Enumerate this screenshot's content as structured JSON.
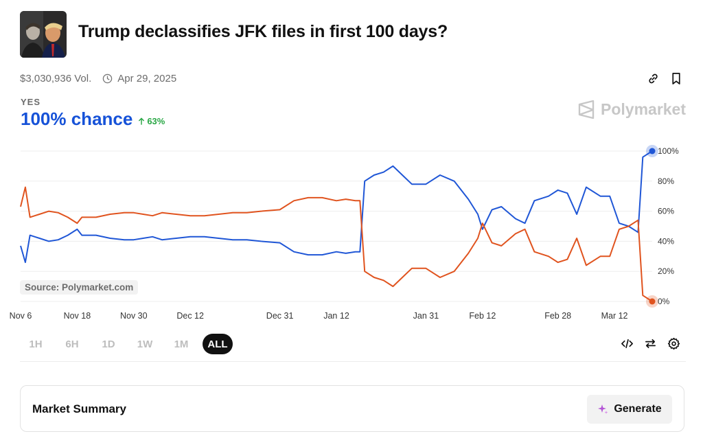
{
  "market": {
    "title": "Trump declassifies JFK files in first 100 days?",
    "volume": "$3,030,936 Vol.",
    "end_date": "Apr 29, 2025"
  },
  "outcome": {
    "label": "YES",
    "chance": "100% chance",
    "delta": "63%",
    "delta_color": "#29a745"
  },
  "brand": {
    "name": "Polymarket"
  },
  "source_label": "Source: Polymarket.com",
  "ranges": [
    "1H",
    "6H",
    "1D",
    "1W",
    "1M",
    "ALL"
  ],
  "active_range": "ALL",
  "summary": {
    "label": "Market Summary",
    "button": "Generate"
  },
  "icons": {
    "top": [
      "link-icon",
      "bookmark-icon"
    ],
    "tools": [
      "embed-code-icon",
      "swap-icon",
      "settings-icon"
    ]
  },
  "colors": {
    "accent": "#1652d8",
    "yes_line": "#1f56d6",
    "no_line": "#e0531e"
  },
  "chart_data": {
    "type": "line",
    "x_ticks": [
      "Nov 6",
      "Nov 18",
      "Nov 30",
      "Dec 12",
      "Dec 31",
      "Jan 12",
      "Jan 31",
      "Feb 12",
      "Feb 28",
      "Mar 12"
    ],
    "y_ticks": [
      "0%",
      "20%",
      "40%",
      "60%",
      "80%",
      "100%"
    ],
    "ylim": [
      0,
      100
    ],
    "grid": true,
    "series": [
      {
        "color": "#1f56d6",
        "points": [
          [
            "Nov 6",
            37
          ],
          [
            "Nov 7",
            26
          ],
          [
            "Nov 8",
            44
          ],
          [
            "Nov 9",
            43
          ],
          [
            "Nov 10",
            42
          ],
          [
            "Nov 12",
            40
          ],
          [
            "Nov 14",
            41
          ],
          [
            "Nov 16",
            44
          ],
          [
            "Nov 18",
            48
          ],
          [
            "Nov 19",
            44
          ],
          [
            "Nov 22",
            44
          ],
          [
            "Nov 25",
            42
          ],
          [
            "Nov 28",
            41
          ],
          [
            "Nov 30",
            41
          ],
          [
            "Dec 2",
            42
          ],
          [
            "Dec 4",
            43
          ],
          [
            "Dec 6",
            41
          ],
          [
            "Dec 9",
            42
          ],
          [
            "Dec 12",
            43
          ],
          [
            "Dec 15",
            43
          ],
          [
            "Dec 18",
            42
          ],
          [
            "Dec 21",
            41
          ],
          [
            "Dec 24",
            41
          ],
          [
            "Dec 27",
            40
          ],
          [
            "Dec 31",
            39
          ],
          [
            "Jan 3",
            33
          ],
          [
            "Jan 6",
            31
          ],
          [
            "Jan 9",
            31
          ],
          [
            "Jan 12",
            33
          ],
          [
            "Jan 14",
            32
          ],
          [
            "Jan 16",
            33
          ],
          [
            "Jan 17",
            33
          ],
          [
            "Jan 18",
            80
          ],
          [
            "Jan 20",
            84
          ],
          [
            "Jan 22",
            86
          ],
          [
            "Jan 24",
            90
          ],
          [
            "Jan 26",
            84
          ],
          [
            "Jan 28",
            78
          ],
          [
            "Jan 31",
            78
          ],
          [
            "Feb 3",
            84
          ],
          [
            "Feb 6",
            80
          ],
          [
            "Feb 9",
            68
          ],
          [
            "Feb 11",
            58
          ],
          [
            "Feb 12",
            48
          ],
          [
            "Feb 14",
            61
          ],
          [
            "Feb 16",
            63
          ],
          [
            "Feb 19",
            55
          ],
          [
            "Feb 21",
            52
          ],
          [
            "Feb 23",
            67
          ],
          [
            "Feb 26",
            70
          ],
          [
            "Feb 28",
            74
          ],
          [
            "Mar 2",
            72
          ],
          [
            "Mar 4",
            58
          ],
          [
            "Mar 6",
            76
          ],
          [
            "Mar 9",
            70
          ],
          [
            "Mar 11",
            70
          ],
          [
            "Mar 13",
            52
          ],
          [
            "Mar 15",
            50
          ],
          [
            "Mar 17",
            46
          ],
          [
            "Mar 18",
            96
          ],
          [
            "Mar 20",
            100
          ]
        ]
      },
      {
        "color": "#e0531e",
        "points": [
          [
            "Nov 6",
            63
          ],
          [
            "Nov 7",
            76
          ],
          [
            "Nov 8",
            56
          ],
          [
            "Nov 9",
            57
          ],
          [
            "Nov 10",
            58
          ],
          [
            "Nov 12",
            60
          ],
          [
            "Nov 14",
            59
          ],
          [
            "Nov 16",
            56
          ],
          [
            "Nov 18",
            52
          ],
          [
            "Nov 19",
            56
          ],
          [
            "Nov 22",
            56
          ],
          [
            "Nov 25",
            58
          ],
          [
            "Nov 28",
            59
          ],
          [
            "Nov 30",
            59
          ],
          [
            "Dec 2",
            58
          ],
          [
            "Dec 4",
            57
          ],
          [
            "Dec 6",
            59
          ],
          [
            "Dec 9",
            58
          ],
          [
            "Dec 12",
            57
          ],
          [
            "Dec 15",
            57
          ],
          [
            "Dec 18",
            58
          ],
          [
            "Dec 21",
            59
          ],
          [
            "Dec 24",
            59
          ],
          [
            "Dec 27",
            60
          ],
          [
            "Dec 31",
            61
          ],
          [
            "Jan 3",
            67
          ],
          [
            "Jan 6",
            69
          ],
          [
            "Jan 9",
            69
          ],
          [
            "Jan 12",
            67
          ],
          [
            "Jan 14",
            68
          ],
          [
            "Jan 16",
            67
          ],
          [
            "Jan 17",
            67
          ],
          [
            "Jan 18",
            20
          ],
          [
            "Jan 20",
            16
          ],
          [
            "Jan 22",
            14
          ],
          [
            "Jan 24",
            10
          ],
          [
            "Jan 26",
            16
          ],
          [
            "Jan 28",
            22
          ],
          [
            "Jan 31",
            22
          ],
          [
            "Feb 3",
            16
          ],
          [
            "Feb 6",
            20
          ],
          [
            "Feb 9",
            32
          ],
          [
            "Feb 11",
            42
          ],
          [
            "Feb 12",
            52
          ],
          [
            "Feb 14",
            39
          ],
          [
            "Feb 16",
            37
          ],
          [
            "Feb 19",
            45
          ],
          [
            "Feb 21",
            48
          ],
          [
            "Feb 23",
            33
          ],
          [
            "Feb 26",
            30
          ],
          [
            "Feb 28",
            26
          ],
          [
            "Mar 2",
            28
          ],
          [
            "Mar 4",
            42
          ],
          [
            "Mar 6",
            24
          ],
          [
            "Mar 9",
            30
          ],
          [
            "Mar 11",
            30
          ],
          [
            "Mar 13",
            48
          ],
          [
            "Mar 15",
            50
          ],
          [
            "Mar 17",
            54
          ],
          [
            "Mar 18",
            4
          ],
          [
            "Mar 20",
            0
          ]
        ]
      }
    ]
  }
}
